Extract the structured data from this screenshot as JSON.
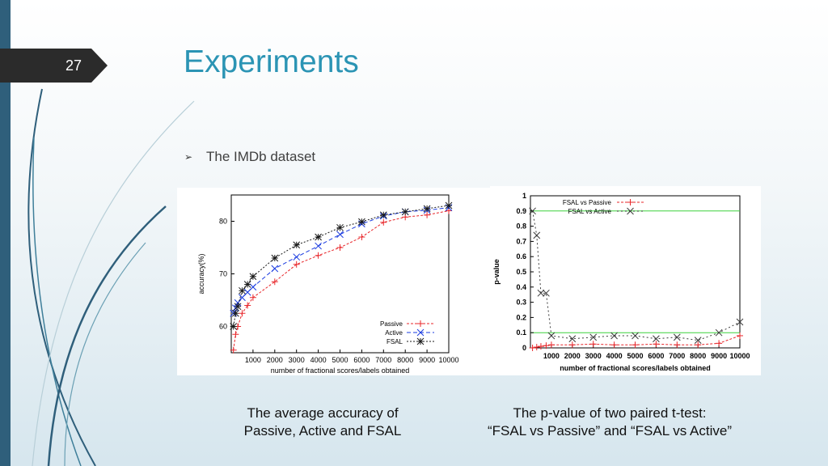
{
  "slide": {
    "number": "27",
    "title": "Experiments",
    "bullet": "The IMDb dataset",
    "caption_left": [
      "The average accuracy of",
      "Passive, Active and FSAL"
    ],
    "caption_right": [
      "The p-value of two paired t-test:",
      "“FSAL vs Passive” and “FSAL vs Active”"
    ],
    "colors": {
      "title": "#2b94b4",
      "accent_bar": "#2f5f7b",
      "number_tab": "#2b2b2b"
    }
  },
  "chart_data": [
    {
      "type": "line",
      "xlabel": "number of fractional scores/labels obtained",
      "ylabel": "accuracy(%)",
      "ylim": [
        55,
        85
      ],
      "xlim": [
        0,
        10000
      ],
      "x_ticks": [
        1000,
        2000,
        3000,
        4000,
        5000,
        6000,
        7000,
        8000,
        9000,
        10000
      ],
      "y_ticks": [
        60,
        70,
        80
      ],
      "legend": "bottom-right",
      "grid": false,
      "x": [
        100,
        200,
        300,
        500,
        750,
        1000,
        2000,
        3000,
        4000,
        5000,
        6000,
        7000,
        8000,
        9000,
        10000
      ],
      "series": [
        {
          "name": "Passive",
          "color": "#e8262a",
          "marker": "+",
          "values": [
            55.5,
            58.5,
            60.0,
            62.5,
            64.0,
            65.5,
            68.5,
            71.8,
            73.5,
            75.0,
            77.0,
            79.8,
            80.8,
            81.2,
            82.0
          ]
        },
        {
          "name": "Active",
          "color": "#1a3be0",
          "marker": "x",
          "values": [
            62.5,
            63.5,
            64.5,
            65.5,
            66.5,
            67.5,
            71.0,
            73.2,
            75.3,
            77.5,
            79.5,
            81.0,
            81.8,
            82.1,
            82.6
          ]
        },
        {
          "name": "FSAL",
          "color": "#1a1a1a",
          "marker": "*",
          "values": [
            60.0,
            62.5,
            63.8,
            66.8,
            68.0,
            69.5,
            73.0,
            75.5,
            77.0,
            78.8,
            79.9,
            81.2,
            81.8,
            82.4,
            83.0
          ]
        }
      ]
    },
    {
      "type": "line",
      "xlabel": "number of fractional scores/labels obtained",
      "ylabel": "p-value",
      "ylim": [
        0,
        1
      ],
      "xlim": [
        0,
        10000
      ],
      "x_ticks": [
        1000,
        2000,
        3000,
        4000,
        5000,
        6000,
        7000,
        8000,
        9000,
        10000
      ],
      "y_ticks": [
        0,
        0.1,
        0.2,
        0.3,
        0.4,
        0.5,
        0.6,
        0.7,
        0.8,
        0.9,
        1
      ],
      "legend": "top-left",
      "grid": false,
      "reference_lines": [
        {
          "y": 0.9,
          "color": "#3bd13b"
        },
        {
          "y": 0.1,
          "color": "#3bd13b"
        }
      ],
      "x": [
        100,
        300,
        500,
        750,
        1000,
        2000,
        3000,
        4000,
        5000,
        6000,
        7000,
        8000,
        9000,
        10000
      ],
      "series": [
        {
          "name": "FSAL vs Passive",
          "color": "#e8262a",
          "marker": "+",
          "values": [
            0.0,
            0.005,
            0.01,
            0.015,
            0.02,
            0.02,
            0.025,
            0.02,
            0.02,
            0.025,
            0.02,
            0.02,
            0.03,
            0.08
          ]
        },
        {
          "name": "FSAL vs Active",
          "color": "#3a3a3a",
          "marker": "x",
          "values": [
            0.9,
            0.74,
            0.36,
            0.36,
            0.08,
            0.06,
            0.07,
            0.08,
            0.08,
            0.06,
            0.07,
            0.05,
            0.1,
            0.17
          ]
        }
      ]
    }
  ]
}
